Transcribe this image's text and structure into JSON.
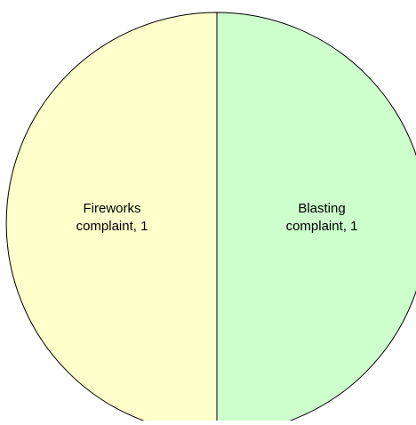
{
  "chart_data": {
    "type": "pie",
    "title": "",
    "categories": [
      "Fireworks complaint",
      "Blasting complaint"
    ],
    "values": [
      1,
      1
    ],
    "slices": [
      {
        "category": "Fireworks complaint",
        "value": 1,
        "label_line1": "Fireworks",
        "label_line2": "complaint, 1",
        "color": "#FFFFCC"
      },
      {
        "category": "Blasting complaint",
        "value": 1,
        "label_line1": "Blasting",
        "label_line2": "complaint, 1",
        "color": "#CCFFCC"
      }
    ],
    "legend": "none",
    "border_color": "#000000"
  }
}
